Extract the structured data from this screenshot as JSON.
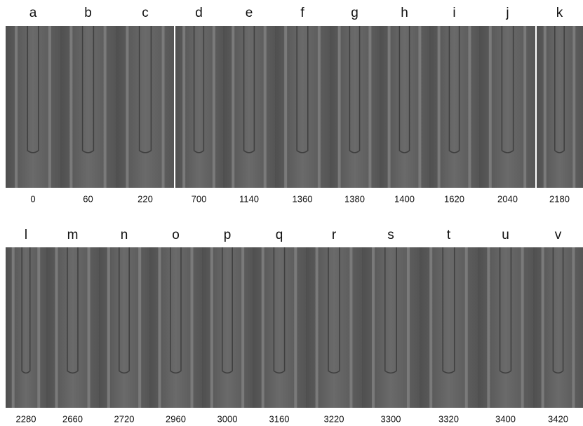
{
  "rows": [
    {
      "panels": [
        {
          "letter": "a",
          "time": "0"
        },
        {
          "letter": "b",
          "time": "60"
        },
        {
          "letter": "c",
          "time": "220"
        },
        {
          "letter": "d",
          "time": "700"
        },
        {
          "letter": "e",
          "time": "1140"
        },
        {
          "letter": "f",
          "time": "1360"
        },
        {
          "letter": "g",
          "time": "1380"
        },
        {
          "letter": "h",
          "time": "1400"
        },
        {
          "letter": "i",
          "time": "1620"
        },
        {
          "letter": "j",
          "time": "2040"
        },
        {
          "letter": "k",
          "time": "2180"
        }
      ]
    },
    {
      "panels": [
        {
          "letter": "l",
          "time": "2280"
        },
        {
          "letter": "m",
          "time": "2660"
        },
        {
          "letter": "n",
          "time": "2720"
        },
        {
          "letter": "o",
          "time": "2960"
        },
        {
          "letter": "p",
          "time": "3000"
        },
        {
          "letter": "q",
          "time": "3160"
        },
        {
          "letter": "r",
          "time": "3220"
        },
        {
          "letter": "s",
          "time": "3300"
        },
        {
          "letter": "t",
          "time": "3320"
        },
        {
          "letter": "u",
          "time": "3400"
        },
        {
          "letter": "v",
          "time": "3420"
        }
      ]
    }
  ]
}
